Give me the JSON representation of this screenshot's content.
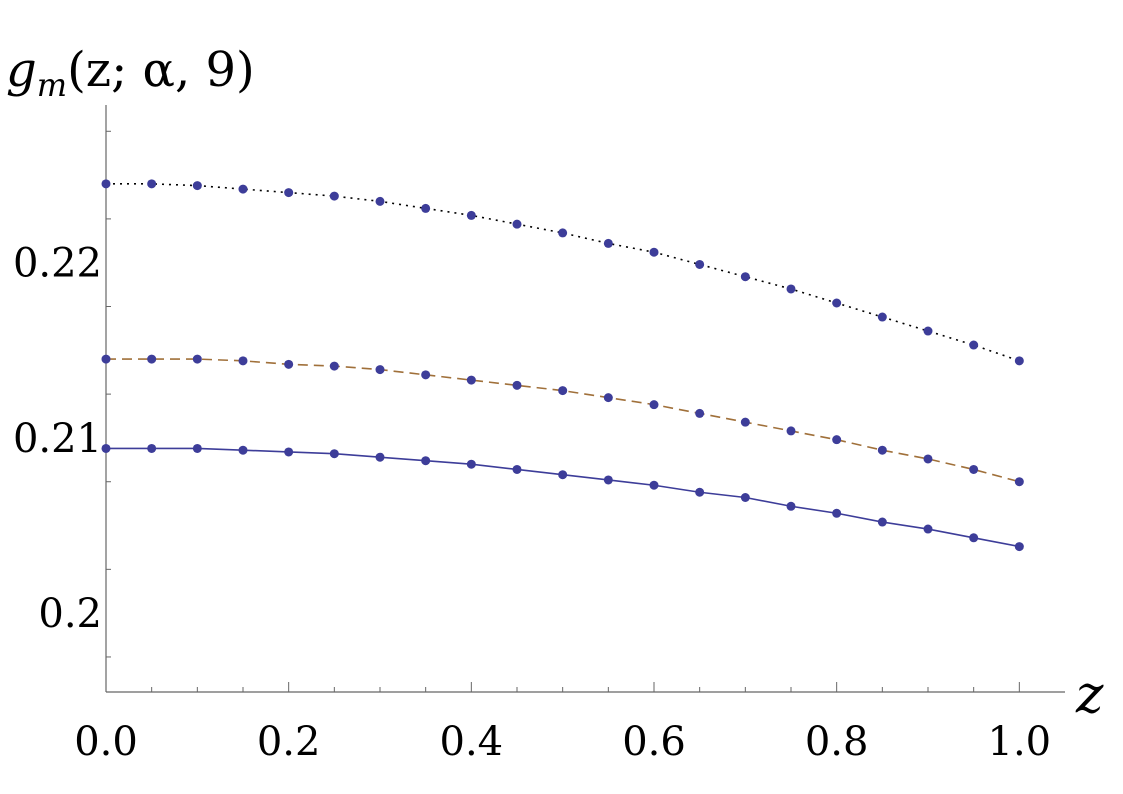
{
  "chart_data": {
    "type": "scatter",
    "title": "",
    "ylabel": "g_m(z; α, 9)",
    "xlabel": "z",
    "xlim": [
      0,
      1.05
    ],
    "ylim": [
      0.1955,
      0.229
    ],
    "x_ticks": [
      "0.0",
      "0.2",
      "0.4",
      "0.6",
      "0.8",
      "1.0"
    ],
    "y_ticks": [
      "0.2",
      "0.21",
      "0.22"
    ],
    "x_tick_values": [
      0,
      0.2,
      0.4,
      0.6,
      0.8,
      1.0
    ],
    "y_tick_values": [
      0.2,
      0.21,
      0.22
    ],
    "x": [
      0,
      0.05,
      0.1,
      0.15,
      0.2,
      0.25,
      0.3,
      0.35,
      0.4,
      0.45,
      0.5,
      0.55,
      0.6,
      0.65,
      0.7,
      0.75,
      0.8,
      0.85,
      0.9,
      0.95,
      1.0
    ],
    "grid": false,
    "marker_color": "#3d3d99",
    "series": [
      {
        "line_style": "dotted",
        "line_color": "#000000",
        "values": [
          0.2245,
          0.2245,
          0.2244,
          0.2242,
          0.224,
          0.2238,
          0.2235,
          0.2231,
          0.2227,
          0.2222,
          0.2217,
          0.2211,
          0.2206,
          0.2199,
          0.2192,
          0.2185,
          0.2177,
          0.2169,
          0.2161,
          0.2153,
          0.2144
        ]
      },
      {
        "line_style": "dashed",
        "line_color": "#a0703a",
        "values": [
          0.2145,
          0.2145,
          0.2145,
          0.2144,
          0.2142,
          0.2141,
          0.2139,
          0.2136,
          0.2133,
          0.213,
          0.2127,
          0.2123,
          0.2119,
          0.2114,
          0.2109,
          0.2104,
          0.2099,
          0.2093,
          0.2088,
          0.2082,
          0.2075
        ]
      },
      {
        "line_style": "solid",
        "line_color": "#3d3d99",
        "values": [
          0.2094,
          0.2094,
          0.2094,
          0.2093,
          0.2092,
          0.2091,
          0.2089,
          0.2087,
          0.2085,
          0.2082,
          0.2079,
          0.2076,
          0.2073,
          0.2069,
          0.2066,
          0.2061,
          0.2057,
          0.2052,
          0.2048,
          0.2043,
          0.2038
        ]
      }
    ]
  }
}
